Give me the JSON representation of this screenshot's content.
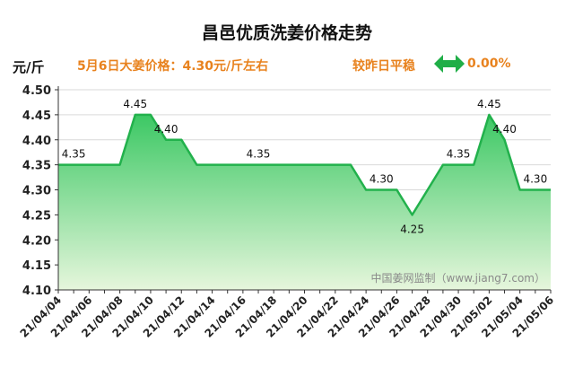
{
  "header": {
    "title": "昌邑优质洗姜价格走势",
    "unit": "元/斤",
    "note": "5月6日大姜价格：4.30元/斤左右",
    "trend_label": "较昨日平稳",
    "change": "0.00%"
  },
  "watermark": "中国姜网监制（www.jiang7.com）",
  "colors": {
    "line": "#22b14c",
    "fill_top": "#3cc864",
    "fill_bottom": "#e6f6dc",
    "accent": "#e8821e"
  },
  "chart_data": {
    "type": "area",
    "title": "昌邑优质洗姜价格走势",
    "ylabel": "元/斤",
    "ylim": [
      4.1,
      4.5
    ],
    "yticks": [
      "4.10",
      "4.15",
      "4.20",
      "4.25",
      "4.30",
      "4.35",
      "4.40",
      "4.45",
      "4.50"
    ],
    "xticks": [
      "21/04/04",
      "21/04/06",
      "21/04/08",
      "21/04/10",
      "21/04/12",
      "21/04/14",
      "21/04/16",
      "21/04/18",
      "21/04/20",
      "21/04/22",
      "21/04/24",
      "21/04/26",
      "21/04/28",
      "21/04/30",
      "21/05/02",
      "21/05/04",
      "21/05/06"
    ],
    "grid": true,
    "series": [
      {
        "x": [
          "21/04/04",
          "21/04/05",
          "21/04/06",
          "21/04/07",
          "21/04/08",
          "21/04/09",
          "21/04/10",
          "21/04/11",
          "21/04/12",
          "21/04/13",
          "21/04/14",
          "21/04/15",
          "21/04/16",
          "21/04/17",
          "21/04/18",
          "21/04/19",
          "21/04/20",
          "21/04/21",
          "21/04/22",
          "21/04/23",
          "21/04/24",
          "21/04/25",
          "21/04/26",
          "21/04/27",
          "21/04/28",
          "21/04/29",
          "21/04/30",
          "21/05/01",
          "21/05/02",
          "21/05/03",
          "21/05/04",
          "21/05/05",
          "21/05/06"
        ],
        "y": [
          4.35,
          4.35,
          4.35,
          4.35,
          4.35,
          4.45,
          4.45,
          4.4,
          4.4,
          4.35,
          4.35,
          4.35,
          4.35,
          4.35,
          4.35,
          4.35,
          4.35,
          4.35,
          4.35,
          4.35,
          4.3,
          4.3,
          4.3,
          4.25,
          4.3,
          4.35,
          4.35,
          4.35,
          4.45,
          4.4,
          4.3,
          4.3,
          4.3
        ]
      }
    ],
    "data_labels": [
      {
        "x": "21/04/05",
        "text": "4.35"
      },
      {
        "x": "21/04/09",
        "text": "4.45"
      },
      {
        "x": "21/04/11",
        "text": "4.40"
      },
      {
        "x": "21/04/17",
        "text": "4.35"
      },
      {
        "x": "21/04/25",
        "text": "4.30"
      },
      {
        "x": "21/04/27",
        "text": "4.25"
      },
      {
        "x": "21/04/30",
        "text": "4.35"
      },
      {
        "x": "21/05/02",
        "text": "4.45"
      },
      {
        "x": "21/05/03",
        "text": "4.40"
      },
      {
        "x": "21/05/05",
        "text": "4.30"
      }
    ]
  }
}
